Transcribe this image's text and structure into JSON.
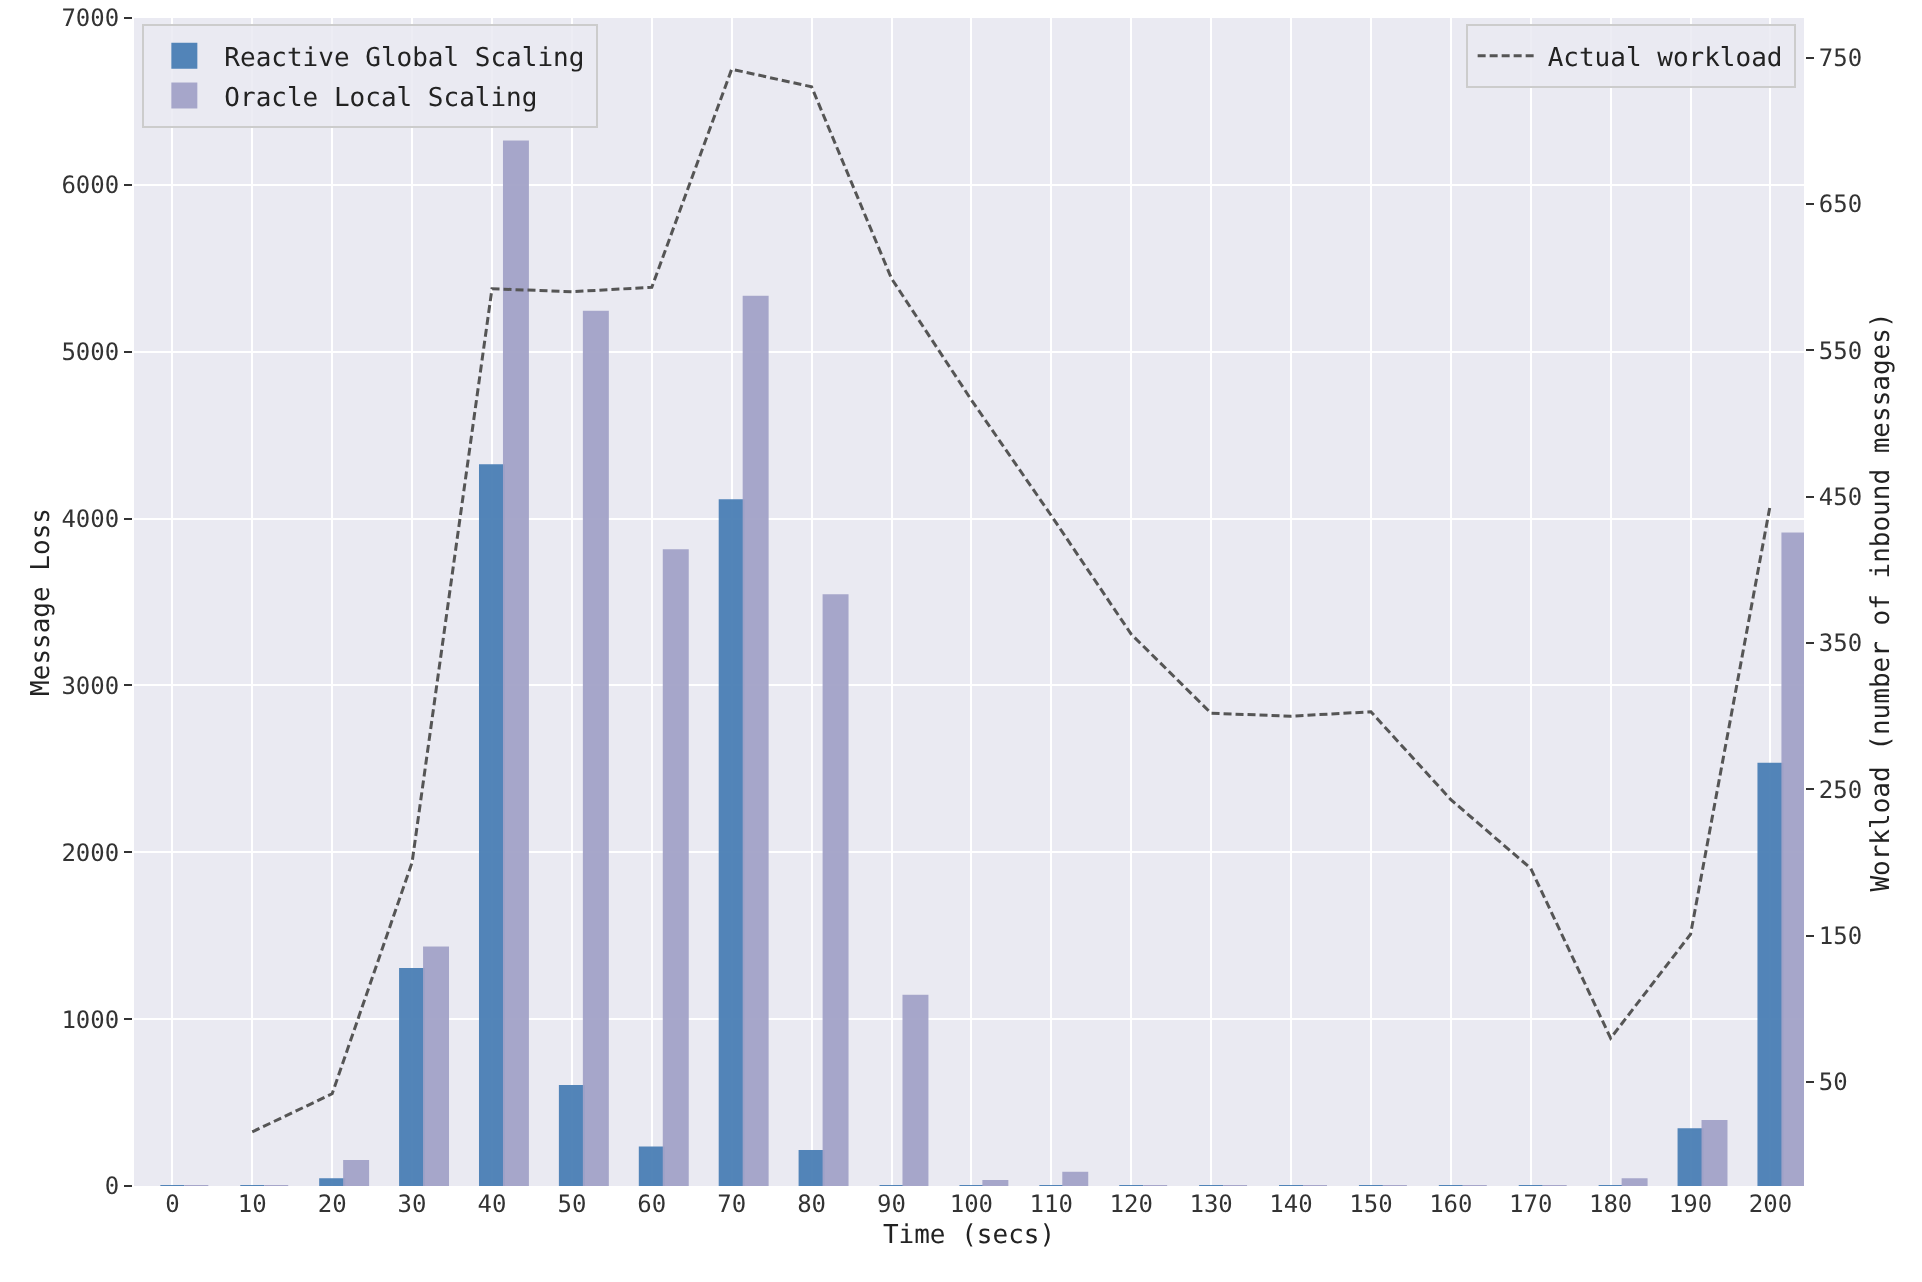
{
  "chart_data": {
    "type": "bar",
    "xlabel": "Time (secs)",
    "ylabel": "Message Loss",
    "y2label": "Workload (number of inbound messages)",
    "x": [
      0,
      10,
      20,
      30,
      40,
      50,
      60,
      70,
      80,
      90,
      100,
      110,
      120,
      130,
      140,
      150,
      160,
      170,
      180,
      190,
      200
    ],
    "series": [
      {
        "name": "Reactive Global Scaling",
        "color": "#4a7fb5",
        "values": [
          0,
          0,
          40,
          1300,
          4320,
          600,
          230,
          4110,
          210,
          0,
          0,
          0,
          0,
          0,
          0,
          0,
          0,
          0,
          0,
          340,
          2530
        ]
      },
      {
        "name": "Oracle Local Scaling",
        "color": "#a3a3c8",
        "values": [
          0,
          0,
          150,
          1430,
          6260,
          5240,
          3810,
          5330,
          3540,
          1140,
          30,
          80,
          0,
          0,
          0,
          0,
          0,
          0,
          40,
          390,
          3910
        ]
      },
      {
        "name": "Actual workload",
        "type": "line",
        "axis": "y2",
        "color": "#555555",
        "line_style": "dashed",
        "values": [
          null,
          16,
          42,
          200,
          592,
          590,
          593,
          742,
          730,
          599,
          516,
          437,
          356,
          302,
          300,
          303,
          243,
          196,
          80,
          151,
          445
        ]
      }
    ],
    "xlim": [
      -4.8,
      204.2
    ],
    "xticks": [
      0,
      10,
      20,
      30,
      40,
      50,
      60,
      70,
      80,
      90,
      100,
      110,
      120,
      130,
      140,
      150,
      160,
      170,
      180,
      190,
      200
    ],
    "ylim": [
      0,
      7000
    ],
    "yticks": [
      0,
      1000,
      2000,
      3000,
      4000,
      5000,
      6000,
      7000
    ],
    "y2lim": [
      -21,
      777
    ],
    "y2ticks": [
      50,
      150,
      250,
      350,
      450,
      550,
      650,
      750
    ],
    "grid": true,
    "legend": "top left"
  }
}
